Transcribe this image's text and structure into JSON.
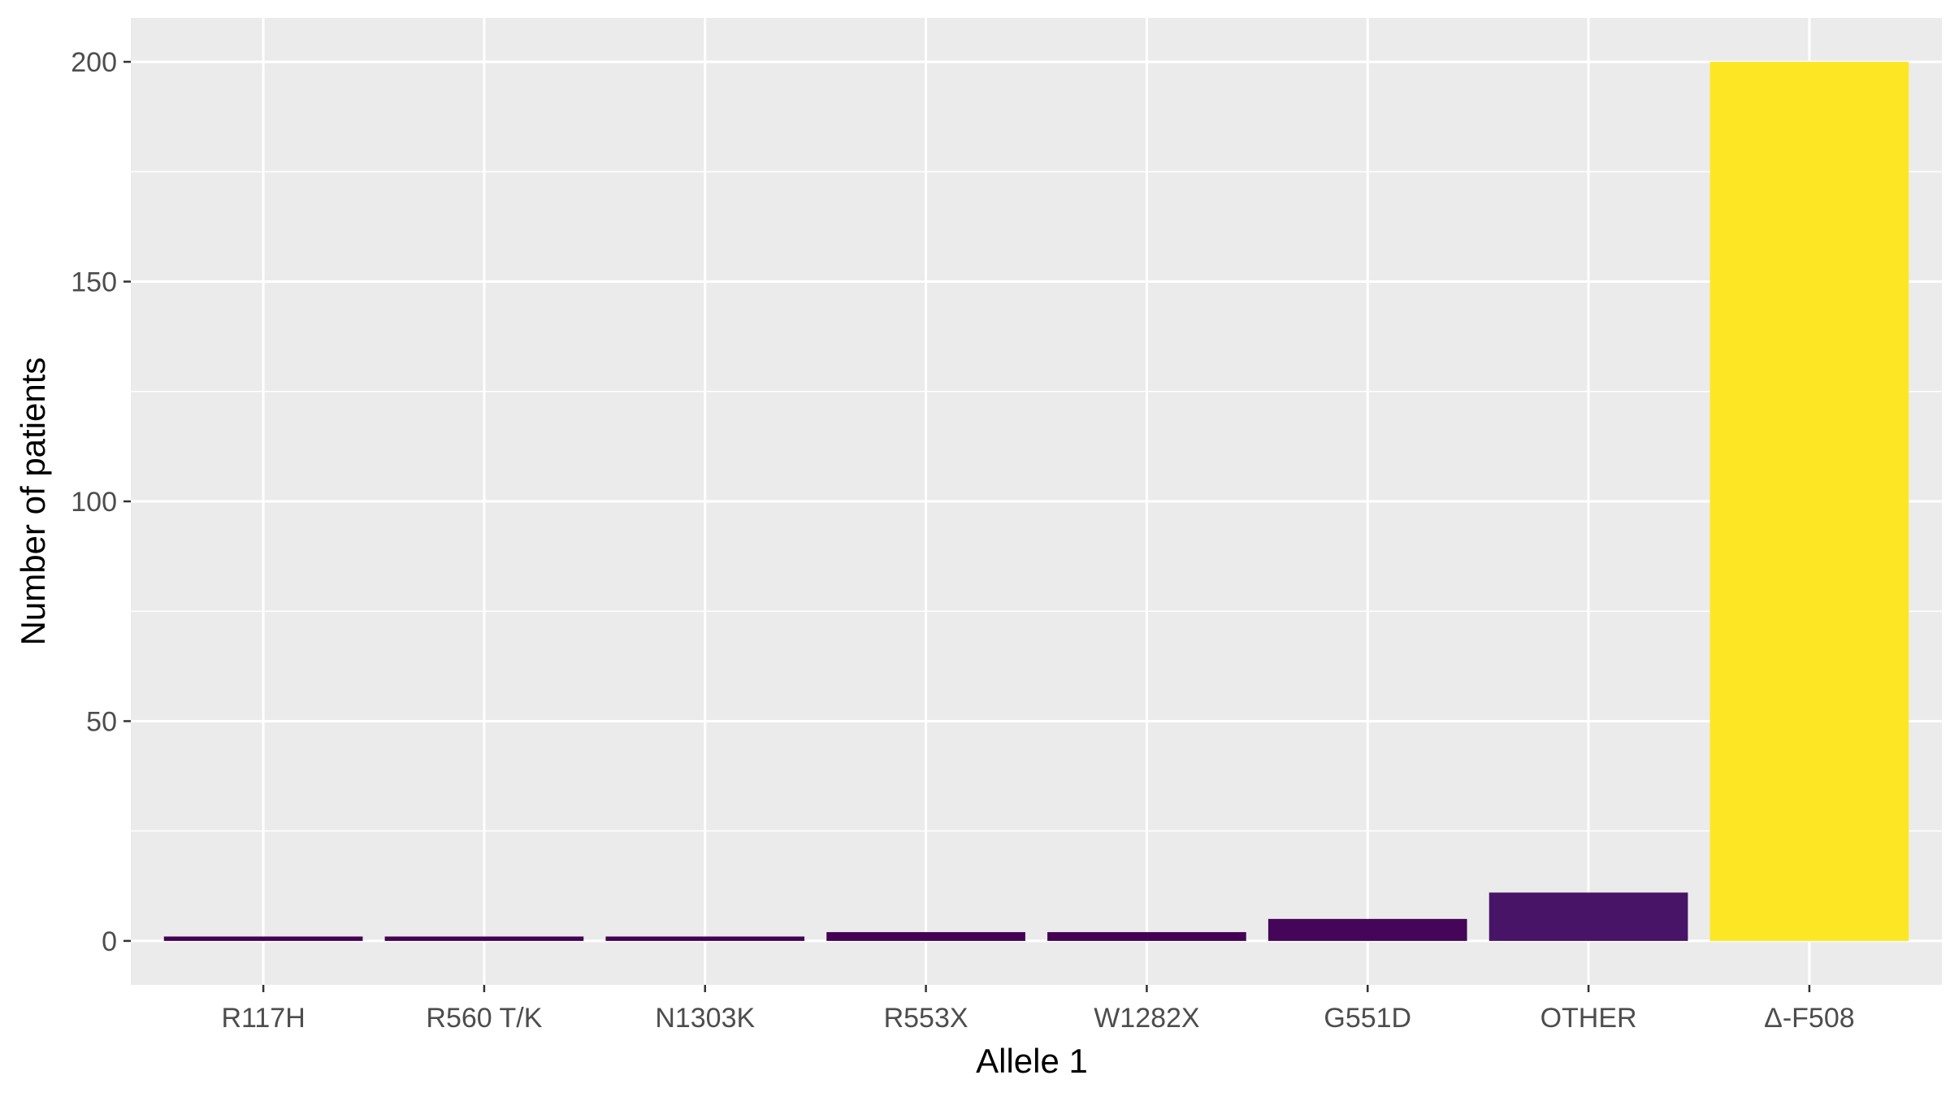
{
  "chart_data": {
    "type": "bar",
    "title": "",
    "xlabel": "Allele 1",
    "ylabel": "Number of patients",
    "categories": [
      "R117H",
      "R560 T/K",
      "N1303K",
      "R553X",
      "W1282X",
      "G551D",
      "OTHER",
      "Δ-F508"
    ],
    "values": [
      1,
      1,
      1,
      2,
      2,
      5,
      11,
      200
    ],
    "bar_colors": [
      "#440154",
      "#440154",
      "#440154",
      "#440154",
      "#440154",
      "#450559",
      "#481467",
      "#FDE725"
    ],
    "ylim": [
      -10,
      210
    ],
    "yticks": [
      0,
      50,
      100,
      150,
      200
    ],
    "ytick_labels": [
      "0",
      "50",
      "100",
      "150",
      "200"
    ],
    "grid": true,
    "legend": "none",
    "panel_background": "#EBEBEB",
    "grid_color": "#FFFFFF"
  }
}
